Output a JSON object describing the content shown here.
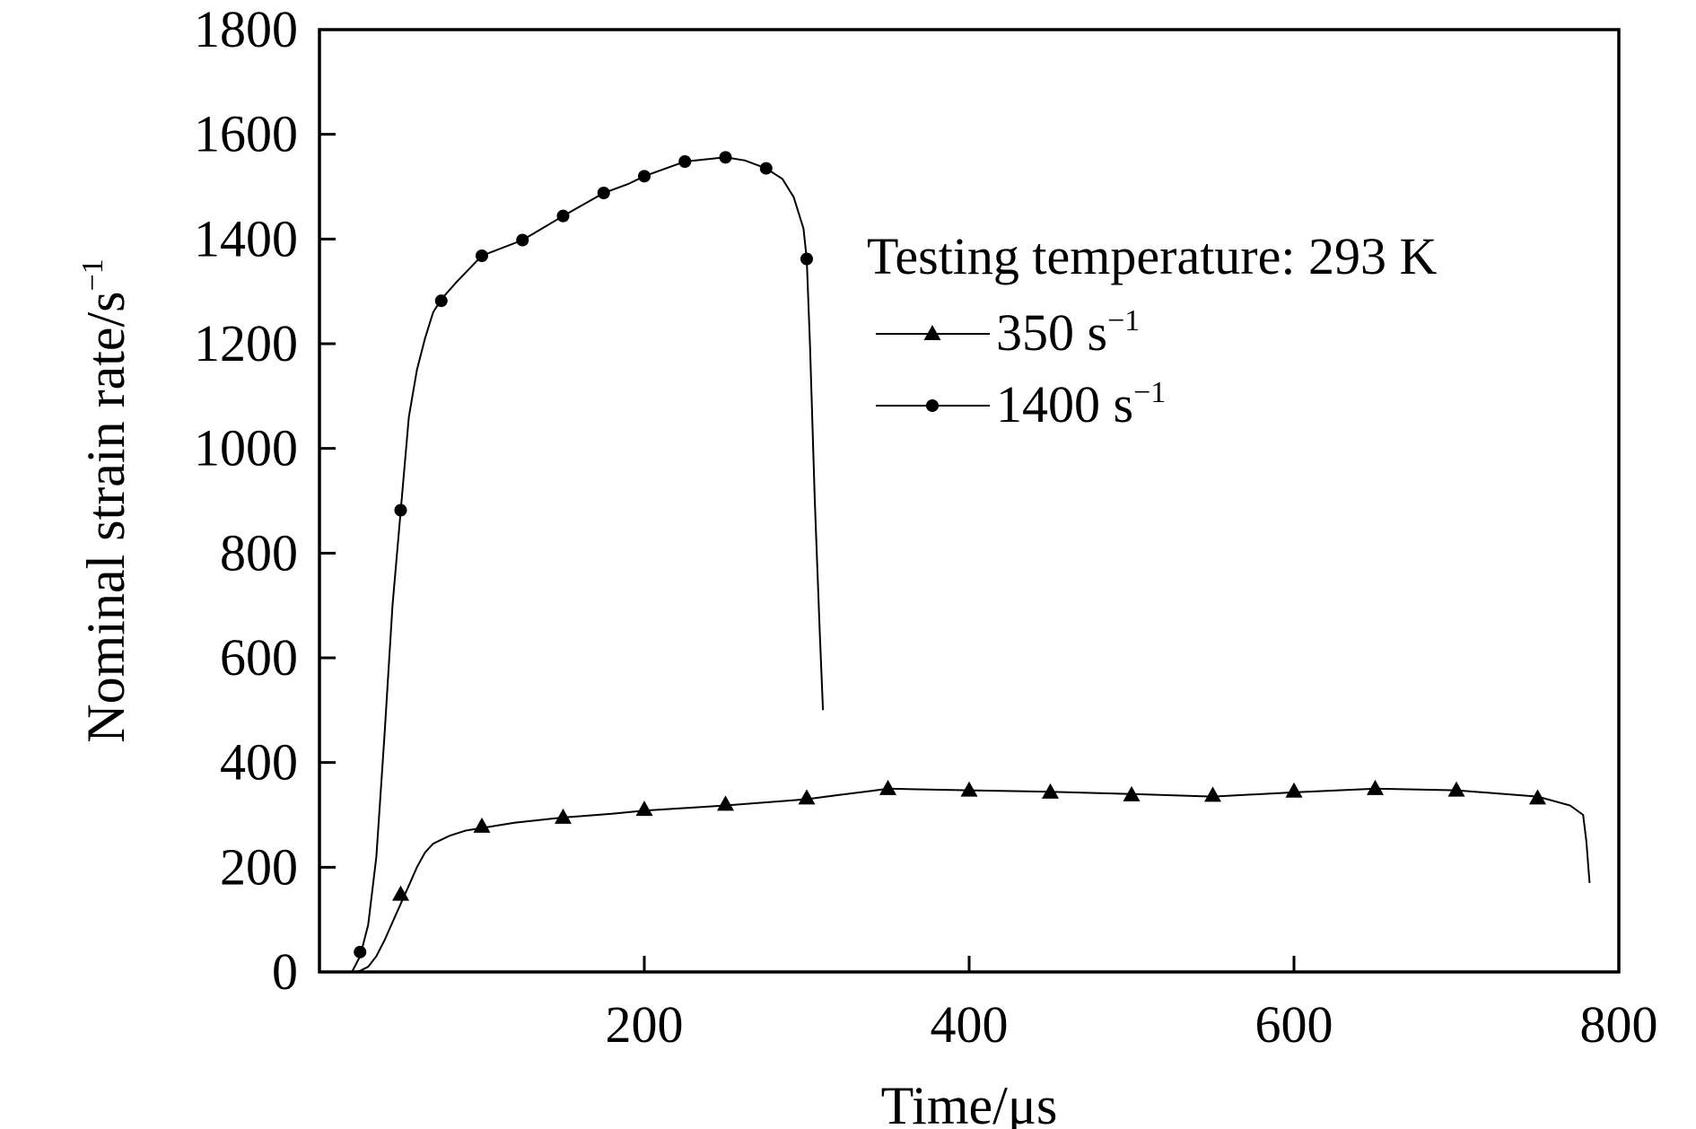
{
  "chart_data": {
    "type": "line",
    "xlabel": "Time/μs",
    "ylabel": "Nominal strain rate/s",
    "ylabel_superscript": "−1",
    "xlim": [
      0,
      800
    ],
    "ylim": [
      0,
      1800
    ],
    "xticks": [
      200,
      400,
      600,
      800
    ],
    "yticks": [
      0,
      200,
      400,
      600,
      800,
      1000,
      1200,
      1400,
      1600,
      1800
    ],
    "grid": false,
    "legend_placement": "top-right",
    "legend_title": "Testing temperature: 293 K",
    "series": [
      {
        "name": "350 s",
        "name_superscript": "−1",
        "marker": "triangle",
        "line": [
          [
            20,
            0
          ],
          [
            25,
            2
          ],
          [
            30,
            10
          ],
          [
            35,
            30
          ],
          [
            40,
            60
          ],
          [
            45,
            95
          ],
          [
            50,
            130
          ],
          [
            55,
            165
          ],
          [
            60,
            200
          ],
          [
            65,
            228
          ],
          [
            70,
            245
          ],
          [
            80,
            260
          ],
          [
            90,
            270
          ],
          [
            100,
            275
          ],
          [
            120,
            285
          ],
          [
            150,
            295
          ],
          [
            180,
            302
          ],
          [
            200,
            308
          ],
          [
            250,
            318
          ],
          [
            300,
            330
          ],
          [
            320,
            338
          ],
          [
            340,
            346
          ],
          [
            350,
            350
          ],
          [
            400,
            347
          ],
          [
            450,
            344
          ],
          [
            500,
            340
          ],
          [
            550,
            335
          ],
          [
            600,
            343
          ],
          [
            650,
            350
          ],
          [
            700,
            347
          ],
          [
            750,
            335
          ],
          [
            770,
            318
          ],
          [
            778,
            300
          ],
          [
            780,
            250
          ],
          [
            782,
            170
          ]
        ],
        "markers": [
          [
            50,
            148
          ],
          [
            100,
            278
          ],
          [
            150,
            295
          ],
          [
            200,
            310
          ],
          [
            250,
            320
          ],
          [
            300,
            332
          ],
          [
            350,
            350
          ],
          [
            400,
            347
          ],
          [
            450,
            343
          ],
          [
            500,
            338
          ],
          [
            550,
            337
          ],
          [
            600,
            345
          ],
          [
            650,
            350
          ],
          [
            700,
            347
          ],
          [
            750,
            332
          ]
        ]
      },
      {
        "name": "1400 s",
        "name_superscript": "−1",
        "marker": "circle",
        "line": [
          [
            20,
            0
          ],
          [
            25,
            30
          ],
          [
            30,
            90
          ],
          [
            35,
            220
          ],
          [
            40,
            450
          ],
          [
            45,
            700
          ],
          [
            50,
            880
          ],
          [
            55,
            1060
          ],
          [
            60,
            1150
          ],
          [
            65,
            1210
          ],
          [
            70,
            1260
          ],
          [
            75,
            1285
          ],
          [
            85,
            1320
          ],
          [
            100,
            1368
          ],
          [
            125,
            1398
          ],
          [
            150,
            1444
          ],
          [
            175,
            1488
          ],
          [
            190,
            1505
          ],
          [
            200,
            1520
          ],
          [
            225,
            1548
          ],
          [
            250,
            1556
          ],
          [
            262,
            1550
          ],
          [
            275,
            1535
          ],
          [
            285,
            1515
          ],
          [
            292,
            1480
          ],
          [
            298,
            1420
          ],
          [
            300,
            1362
          ],
          [
            302,
            1200
          ],
          [
            305,
            900
          ],
          [
            308,
            650
          ],
          [
            310,
            500
          ]
        ],
        "markers": [
          [
            25,
            38
          ],
          [
            50,
            882
          ],
          [
            75,
            1282
          ],
          [
            100,
            1368
          ],
          [
            125,
            1398
          ],
          [
            150,
            1444
          ],
          [
            175,
            1488
          ],
          [
            200,
            1520
          ],
          [
            225,
            1548
          ],
          [
            250,
            1556
          ],
          [
            275,
            1535
          ],
          [
            300,
            1362
          ]
        ]
      }
    ]
  }
}
